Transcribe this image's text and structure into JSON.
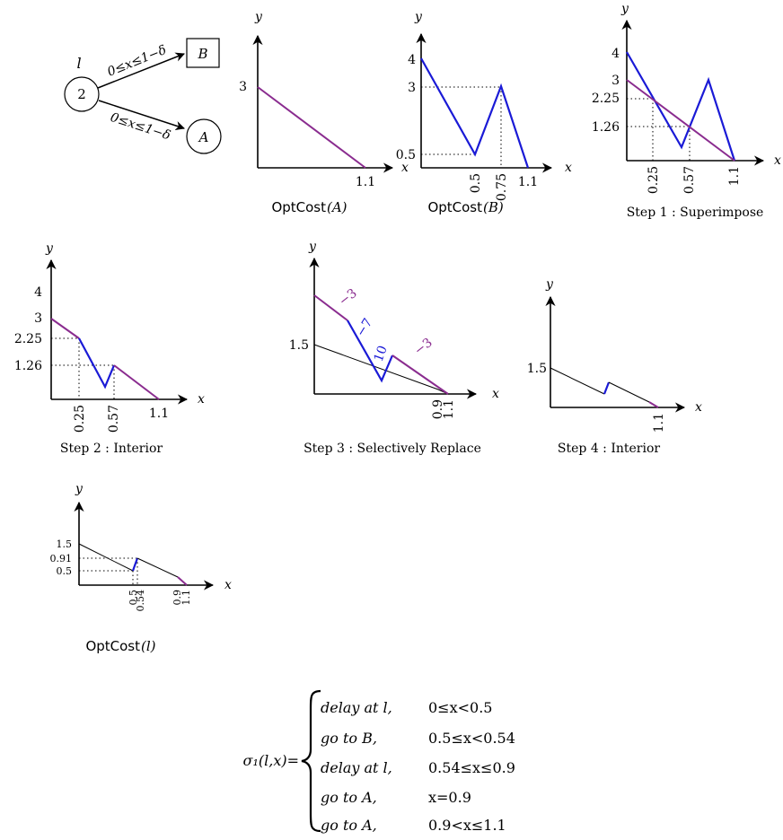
{
  "colors": {
    "purple": "#8a2c8f",
    "blue": "#1a1ad6",
    "black": "#000000"
  },
  "graph": {
    "node_l_label": "l",
    "node_l_value": "2",
    "node_b_label": "B",
    "node_a_label": "A",
    "edge_b_label": "0≤x≤1−δ",
    "edge_a_label": "0≤x≤1−δ"
  },
  "axis": {
    "x": "x",
    "y": "y"
  },
  "panels": {
    "optcost_a": {
      "caption_fn": "OptCost",
      "caption_arg": "(A)",
      "yticks": [
        "3"
      ],
      "xticks": [
        "1.1"
      ]
    },
    "optcost_b": {
      "caption_fn": "OptCost",
      "caption_arg": "(B)",
      "yticks": [
        "4",
        "3",
        "0.5"
      ],
      "xticks": [
        "0.5",
        "0.75",
        "1.1"
      ]
    },
    "step1": {
      "caption": "Step 1 : Superimpose",
      "yticks": [
        "4",
        "3",
        "2.25",
        "1.26"
      ],
      "xticks": [
        "0.25",
        "0.57",
        "1.1"
      ]
    },
    "step2": {
      "caption": "Step 2 : Interior",
      "yticks": [
        "4",
        "3",
        "2.25",
        "1.26"
      ],
      "xticks": [
        "0.25",
        "0.57",
        "1.1"
      ]
    },
    "step3": {
      "caption": "Step 3 : Selectively Replace",
      "yticks": [
        "1.5"
      ],
      "xticks": [
        "0.9",
        "1.1"
      ],
      "slopes": [
        "−3",
        "−7",
        "10",
        "−3"
      ]
    },
    "step4": {
      "caption": "Step 4 : Interior",
      "yticks": [
        "1.5"
      ],
      "xticks": [
        "1.1"
      ]
    },
    "optcost_l": {
      "caption_fn": "OptCost",
      "caption_arg": "(l)",
      "yticks": [
        "1.5",
        "0.91",
        "0.5"
      ],
      "xticks": [
        "0.5",
        "0.54",
        "0.9",
        "1.1"
      ]
    }
  },
  "strategy": {
    "lhs": "σ₁(l,x)=",
    "cases": [
      {
        "action": "delay at l,",
        "condition": "0≤x<0.5"
      },
      {
        "action": "go to B,",
        "condition": "0.5≤x<0.54"
      },
      {
        "action": "delay at l,",
        "condition": "0.54≤x≤0.9"
      },
      {
        "action": "go to A,",
        "condition": "x=0.9"
      },
      {
        "action": "go to A,",
        "condition": "0.9<x≤1.1"
      }
    ]
  }
}
